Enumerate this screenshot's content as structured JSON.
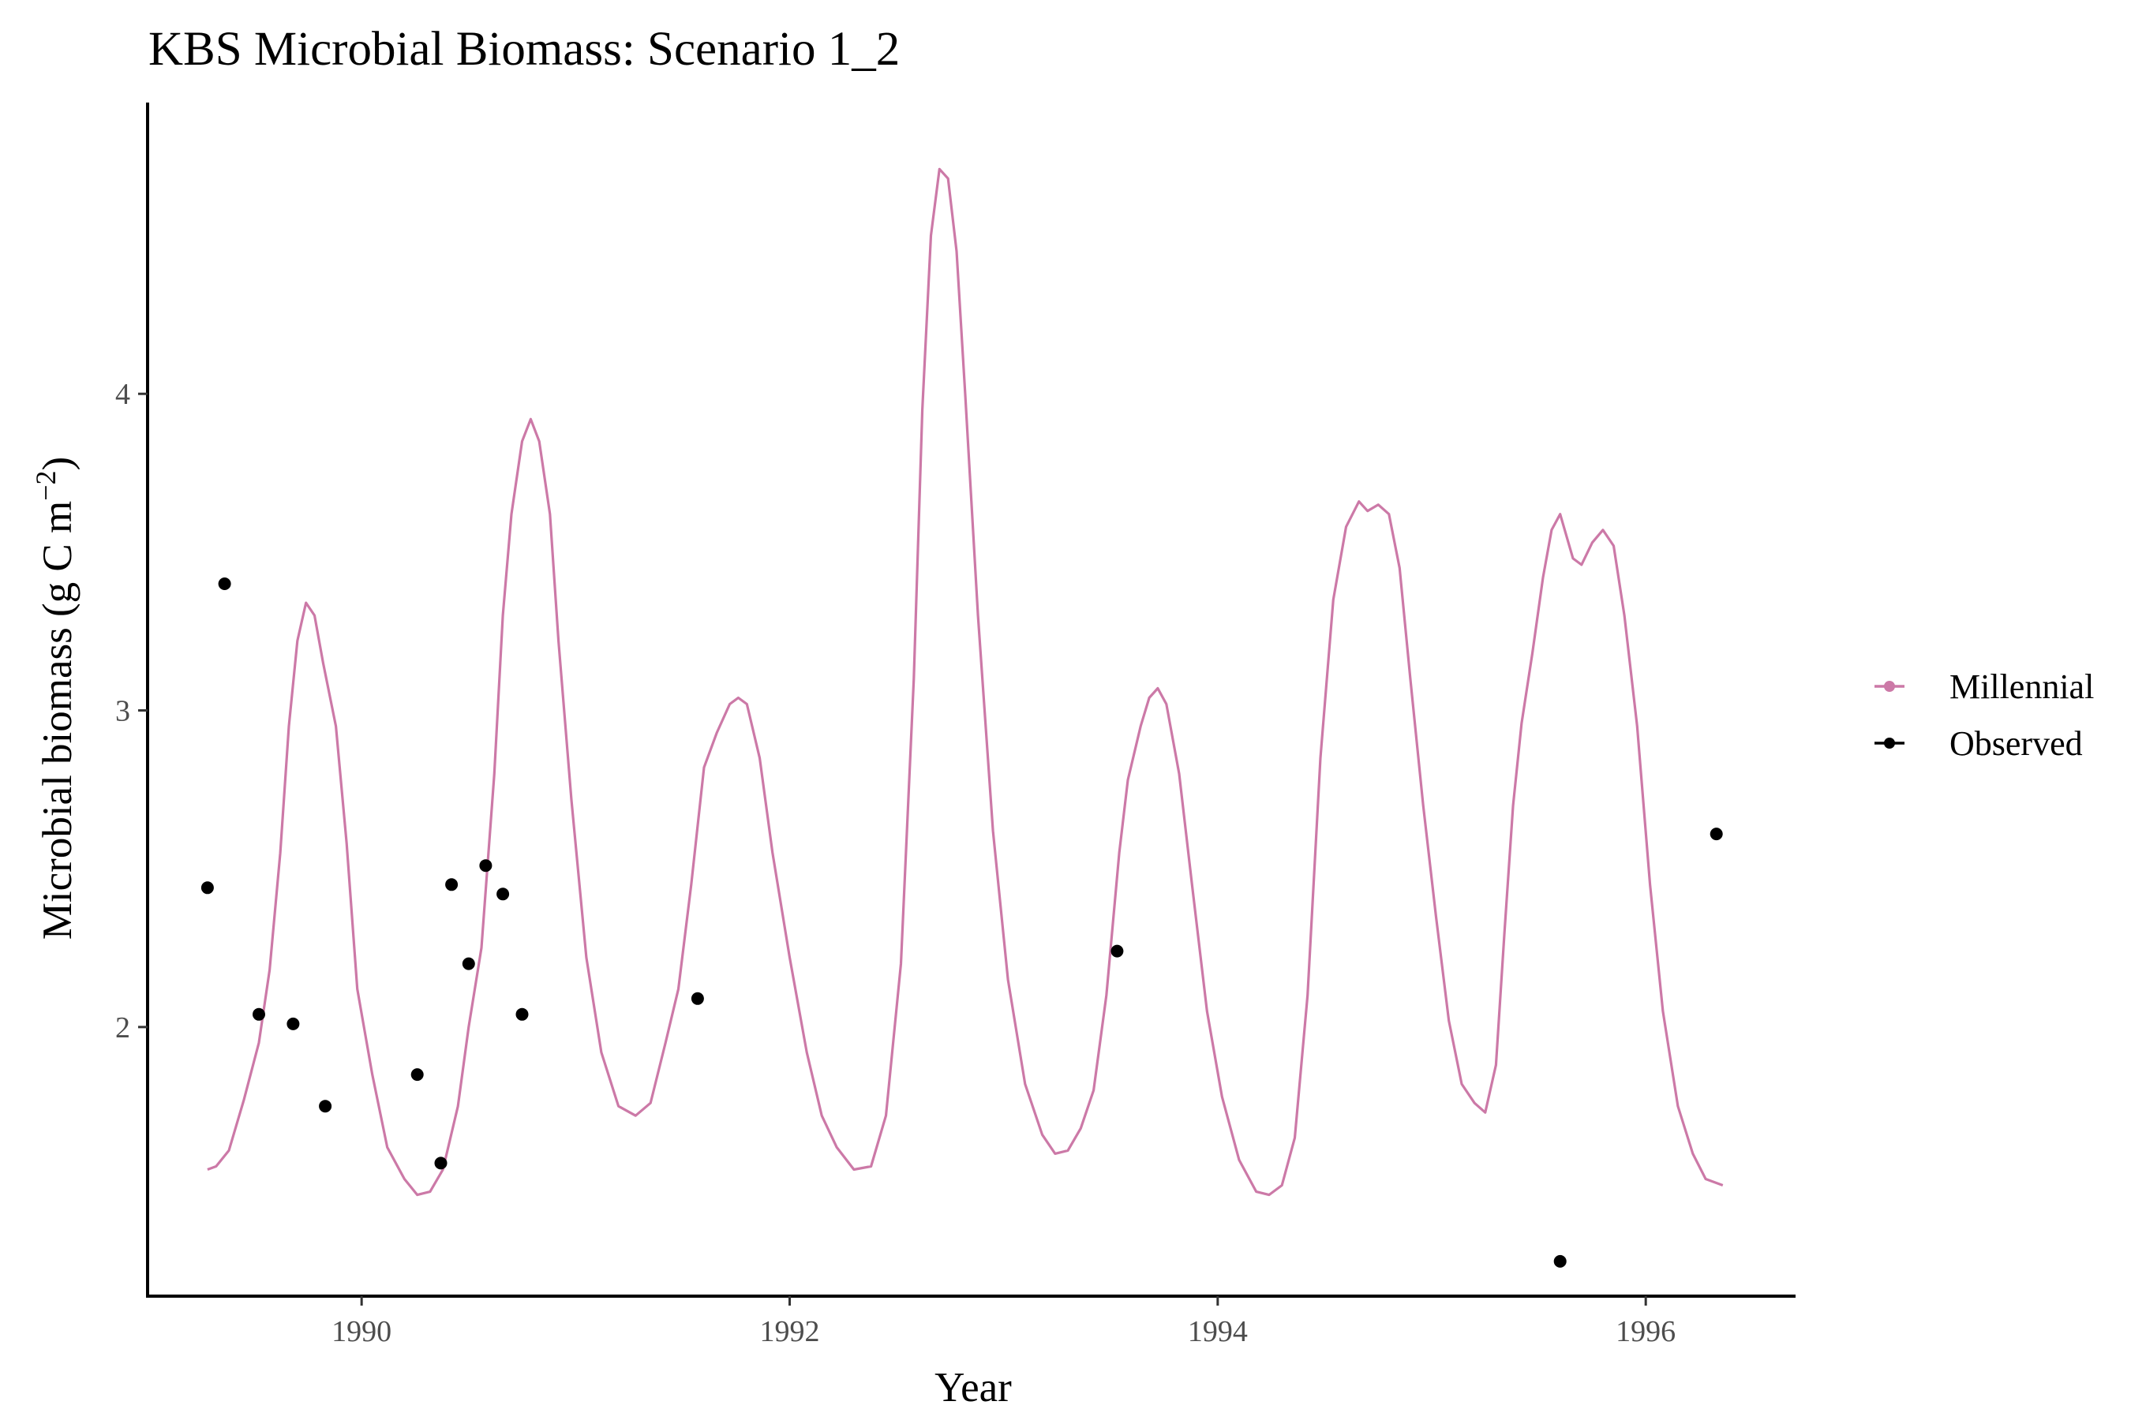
{
  "chart_data": {
    "type": "line",
    "title": "KBS Microbial Biomass: Scenario  1_2",
    "xlabel": "Year",
    "ylabel": "Microbial biomass (g C m",
    "ylabel_sup": "−2",
    "ylabel_close": ")",
    "xlim": [
      1989.0,
      1996.7
    ],
    "ylim": [
      1.15,
      4.92
    ],
    "x_ticks": [
      1990,
      1992,
      1994,
      1996
    ],
    "x_tick_labels": [
      "1990",
      "1992",
      "1994",
      "1996"
    ],
    "y_ticks": [
      2,
      3,
      4
    ],
    "y_tick_labels": [
      "2",
      "3",
      "4"
    ],
    "grid": false,
    "legend_position": "right",
    "series": [
      {
        "name": "Millennial",
        "kind": "line",
        "color": "#CC79A7",
        "points": [
          [
            1989.28,
            1.55
          ],
          [
            1989.32,
            1.56
          ],
          [
            1989.38,
            1.61
          ],
          [
            1989.45,
            1.77
          ],
          [
            1989.52,
            1.95
          ],
          [
            1989.57,
            2.18
          ],
          [
            1989.62,
            2.55
          ],
          [
            1989.66,
            2.95
          ],
          [
            1989.7,
            3.22
          ],
          [
            1989.74,
            3.34
          ],
          [
            1989.78,
            3.3
          ],
          [
            1989.82,
            3.15
          ],
          [
            1989.88,
            2.95
          ],
          [
            1989.93,
            2.58
          ],
          [
            1989.98,
            2.12
          ],
          [
            1990.05,
            1.85
          ],
          [
            1990.12,
            1.62
          ],
          [
            1990.2,
            1.52
          ],
          [
            1990.26,
            1.47
          ],
          [
            1990.32,
            1.48
          ],
          [
            1990.38,
            1.55
          ],
          [
            1990.45,
            1.75
          ],
          [
            1990.5,
            2.0
          ],
          [
            1990.56,
            2.25
          ],
          [
            1990.62,
            2.8
          ],
          [
            1990.66,
            3.3
          ],
          [
            1990.7,
            3.62
          ],
          [
            1990.75,
            3.85
          ],
          [
            1990.79,
            3.92
          ],
          [
            1990.83,
            3.85
          ],
          [
            1990.88,
            3.62
          ],
          [
            1990.92,
            3.22
          ],
          [
            1990.98,
            2.72
          ],
          [
            1991.05,
            2.22
          ],
          [
            1991.12,
            1.92
          ],
          [
            1991.2,
            1.75
          ],
          [
            1991.28,
            1.72
          ],
          [
            1991.35,
            1.76
          ],
          [
            1991.42,
            1.95
          ],
          [
            1991.48,
            2.12
          ],
          [
            1991.54,
            2.45
          ],
          [
            1991.6,
            2.82
          ],
          [
            1991.66,
            2.93
          ],
          [
            1991.72,
            3.02
          ],
          [
            1991.76,
            3.04
          ],
          [
            1991.8,
            3.02
          ],
          [
            1991.86,
            2.85
          ],
          [
            1991.92,
            2.55
          ],
          [
            1992.0,
            2.22
          ],
          [
            1992.08,
            1.92
          ],
          [
            1992.15,
            1.72
          ],
          [
            1992.22,
            1.62
          ],
          [
            1992.3,
            1.55
          ],
          [
            1992.38,
            1.56
          ],
          [
            1992.45,
            1.72
          ],
          [
            1992.52,
            2.2
          ],
          [
            1992.58,
            3.1
          ],
          [
            1992.62,
            3.95
          ],
          [
            1992.66,
            4.5
          ],
          [
            1992.7,
            4.71
          ],
          [
            1992.74,
            4.68
          ],
          [
            1992.78,
            4.45
          ],
          [
            1992.82,
            4.0
          ],
          [
            1992.88,
            3.3
          ],
          [
            1992.95,
            2.62
          ],
          [
            1993.02,
            2.15
          ],
          [
            1993.1,
            1.82
          ],
          [
            1993.18,
            1.66
          ],
          [
            1993.24,
            1.6
          ],
          [
            1993.3,
            1.61
          ],
          [
            1993.36,
            1.68
          ],
          [
            1993.42,
            1.8
          ],
          [
            1993.48,
            2.1
          ],
          [
            1993.54,
            2.55
          ],
          [
            1993.58,
            2.78
          ],
          [
            1993.64,
            2.95
          ],
          [
            1993.68,
            3.04
          ],
          [
            1993.72,
            3.07
          ],
          [
            1993.76,
            3.02
          ],
          [
            1993.82,
            2.8
          ],
          [
            1993.88,
            2.45
          ],
          [
            1993.95,
            2.05
          ],
          [
            1994.02,
            1.78
          ],
          [
            1994.1,
            1.58
          ],
          [
            1994.18,
            1.48
          ],
          [
            1994.24,
            1.47
          ],
          [
            1994.3,
            1.5
          ],
          [
            1994.36,
            1.65
          ],
          [
            1994.42,
            2.1
          ],
          [
            1994.48,
            2.85
          ],
          [
            1994.54,
            3.35
          ],
          [
            1994.6,
            3.58
          ],
          [
            1994.66,
            3.66
          ],
          [
            1994.7,
            3.63
          ],
          [
            1994.75,
            3.65
          ],
          [
            1994.8,
            3.62
          ],
          [
            1994.85,
            3.45
          ],
          [
            1994.9,
            3.1
          ],
          [
            1994.96,
            2.7
          ],
          [
            1995.02,
            2.35
          ],
          [
            1995.08,
            2.02
          ],
          [
            1995.14,
            1.82
          ],
          [
            1995.2,
            1.76
          ],
          [
            1995.25,
            1.73
          ],
          [
            1995.3,
            1.88
          ],
          [
            1995.34,
            2.3
          ],
          [
            1995.38,
            2.7
          ],
          [
            1995.42,
            2.96
          ],
          [
            1995.47,
            3.18
          ],
          [
            1995.52,
            3.42
          ],
          [
            1995.56,
            3.57
          ],
          [
            1995.6,
            3.62
          ],
          [
            1995.66,
            3.48
          ],
          [
            1995.7,
            3.46
          ],
          [
            1995.75,
            3.53
          ],
          [
            1995.8,
            3.57
          ],
          [
            1995.85,
            3.52
          ],
          [
            1995.9,
            3.3
          ],
          [
            1995.96,
            2.95
          ],
          [
            1996.02,
            2.45
          ],
          [
            1996.08,
            2.05
          ],
          [
            1996.15,
            1.75
          ],
          [
            1996.22,
            1.6
          ],
          [
            1996.28,
            1.52
          ],
          [
            1996.36,
            1.5
          ]
        ]
      },
      {
        "name": "Observed",
        "kind": "points",
        "color": "#000000",
        "points": [
          [
            1989.28,
            2.44
          ],
          [
            1989.36,
            3.4
          ],
          [
            1989.52,
            2.04
          ],
          [
            1989.68,
            2.01
          ],
          [
            1989.83,
            1.75
          ],
          [
            1990.26,
            1.85
          ],
          [
            1990.37,
            1.57
          ],
          [
            1990.42,
            2.45
          ],
          [
            1990.5,
            2.2
          ],
          [
            1990.58,
            2.51
          ],
          [
            1990.66,
            2.42
          ],
          [
            1990.75,
            2.04
          ],
          [
            1991.57,
            2.09
          ],
          [
            1993.53,
            2.24
          ],
          [
            1995.6,
            1.26
          ],
          [
            1996.33,
            2.61
          ]
        ]
      }
    ],
    "legend": [
      {
        "label": "Millennial",
        "color": "#CC79A7",
        "marker": "line+point"
      },
      {
        "label": "Observed",
        "color": "#000000",
        "marker": "line+point"
      }
    ]
  }
}
